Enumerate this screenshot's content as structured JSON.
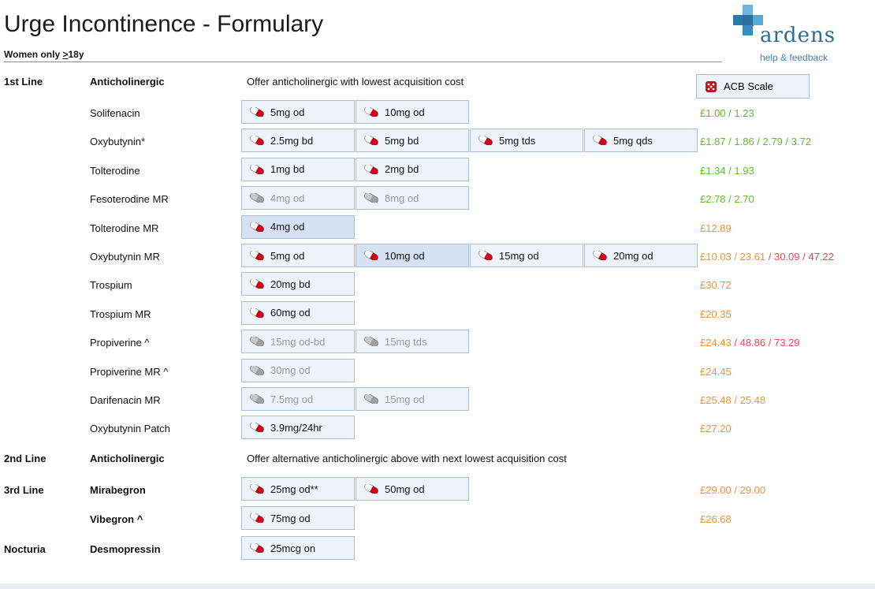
{
  "header": {
    "title": "Urge Incontinence - Formulary",
    "subtitle_prefix": "Women only ",
    "subtitle_underlined": ">",
    "subtitle_suffix": "18y"
  },
  "logo": {
    "word": "ardens",
    "link": "help & feedback"
  },
  "acb_button": {
    "label": "ACB Scale",
    "icon": "dice-icon"
  },
  "colors": {
    "green": "#5bbf2a",
    "orange": "#f0923a",
    "red": "#f2454f",
    "button_bg": "#eef3fa",
    "button_border": "#a9bfd6",
    "pill_red": "#d0021b"
  },
  "lines": {
    "first": {
      "label": "1st Line",
      "class": "Anticholinergic",
      "note": "Offer anticholinergic with lowest acquisition cost"
    },
    "second": {
      "label": "2nd Line",
      "class": "Anticholinergic",
      "note": "Offer alternative anticholinergic above with next lowest acquisition cost"
    },
    "third": {
      "label": "3rd Line",
      "class_1": "Mirabegron",
      "class_2": "Vibegron ^"
    },
    "nocturia": {
      "label": "Nocturia",
      "class": "Desmopressin"
    }
  },
  "rows": [
    {
      "drug": "Solifenacin",
      "doses": [
        "5mg od",
        "10mg od"
      ],
      "costs": [
        {
          "t": "£1.00 / 1.23",
          "c": "g"
        }
      ]
    },
    {
      "drug": "Oxybutynin*",
      "doses": [
        "2.5mg bd",
        "5mg bd",
        "5mg tds",
        "5mg qds"
      ],
      "costs": [
        {
          "t": "£1.87 / 1.86 / 2.79 / 3.72",
          "c": "g"
        }
      ]
    },
    {
      "drug": "Tolterodine",
      "doses": [
        "1mg bd",
        "2mg bd"
      ],
      "costs": [
        {
          "t": "£1.34 / 1.93",
          "c": "g"
        }
      ]
    },
    {
      "drug": "Fesoterodine MR",
      "doses": [
        "4mg od",
        "8mg od"
      ],
      "costs": [
        {
          "t": "£2.78 / 2.70",
          "c": "g"
        }
      ]
    },
    {
      "drug": "Tolterodine MR",
      "doses": [
        "4mg od"
      ],
      "costs": [
        {
          "t": "£12.89",
          "c": "o"
        }
      ]
    },
    {
      "drug": "Oxybutynin MR",
      "doses": [
        "5mg od",
        "10mg od",
        "15mg od",
        "20mg od"
      ],
      "costs": [
        {
          "t": "£10.03 / 23.61",
          "c": "o"
        },
        {
          "t": " / 30.09 / 47.22",
          "c": "r"
        }
      ]
    },
    {
      "drug": "Trospium",
      "doses": [
        "20mg bd"
      ],
      "costs": [
        {
          "t": "£30.72",
          "c": "o"
        }
      ]
    },
    {
      "drug": "Trospium MR",
      "doses": [
        "60mg od"
      ],
      "costs": [
        {
          "t": "£20.35",
          "c": "o"
        }
      ]
    },
    {
      "drug": "Propiverine ^",
      "doses": [
        "15mg od-bd",
        "15mg tds"
      ],
      "costs": [
        {
          "t": "£24.43",
          "c": "o"
        },
        {
          "t": " / 48.86 / 73.29",
          "c": "r"
        }
      ]
    },
    {
      "drug": "Propiverine MR ^",
      "doses": [
        "30mg od"
      ],
      "costs": [
        {
          "t": "£24.45",
          "c": "o"
        }
      ]
    },
    {
      "drug": "Darifenacin MR",
      "doses": [
        "7.5mg od",
        "15mg od"
      ],
      "costs": [
        {
          "t": "£25.48 / 25.48",
          "c": "o"
        }
      ]
    },
    {
      "drug": "Oxybutynin Patch",
      "doses": [
        "3.9mg/24hr"
      ],
      "costs": [
        {
          "t": "£27.20",
          "c": "o"
        }
      ]
    }
  ],
  "third_line_rows": [
    {
      "doses": [
        "25mg od**",
        "50mg od"
      ],
      "costs": [
        {
          "t": "£29.00 / 29.00",
          "c": "o"
        }
      ]
    },
    {
      "doses": [
        "75mg od"
      ],
      "costs": [
        {
          "t": "£26.68",
          "c": "o"
        }
      ]
    }
  ],
  "nocturia_row": {
    "doses": [
      "25mcg on"
    ]
  }
}
